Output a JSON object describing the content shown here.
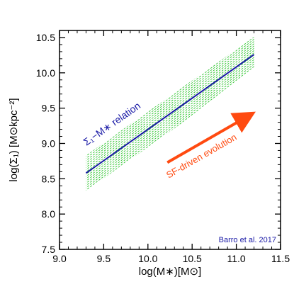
{
  "chart_data": {
    "type": "line",
    "title": "",
    "xlabel": "log(M∗)[M⊙]",
    "ylabel": "log(Σ₁) [M⊙kpc⁻²]",
    "xlim": [
      9.0,
      11.5
    ],
    "ylim": [
      7.5,
      10.6
    ],
    "xticks": [
      9.0,
      9.5,
      10.0,
      10.5,
      11.0,
      11.5
    ],
    "xtick_labels": [
      "9.0",
      "9.5",
      "10.0",
      "10.5",
      "11.0",
      "11.5"
    ],
    "yticks": [
      7.5,
      8.0,
      8.5,
      9.0,
      9.5,
      10.0,
      10.5
    ],
    "ytick_labels": [
      "7.5",
      "8.0",
      "8.5",
      "9.0",
      "9.5",
      "10.0",
      "10.5"
    ],
    "grid": false,
    "relation": {
      "label": "Σ₁−M∗ relation",
      "color": "#1a1aa6",
      "x": [
        9.3,
        11.2
      ],
      "y": [
        8.58,
        10.26
      ]
    },
    "scatter_band": {
      "color": "#2ec42e",
      "x": [
        9.3,
        11.2
      ],
      "upper": [
        8.83,
        10.51
      ],
      "lower": [
        8.33,
        10.01
      ]
    },
    "arrow": {
      "label": "SF-driven evolution",
      "color": "#ff4a10",
      "from": [
        10.22,
        8.73
      ],
      "to": [
        11.2,
        9.45
      ]
    },
    "citation": {
      "text": "Barro et al. 2017",
      "color": "#1a1aa6"
    }
  }
}
